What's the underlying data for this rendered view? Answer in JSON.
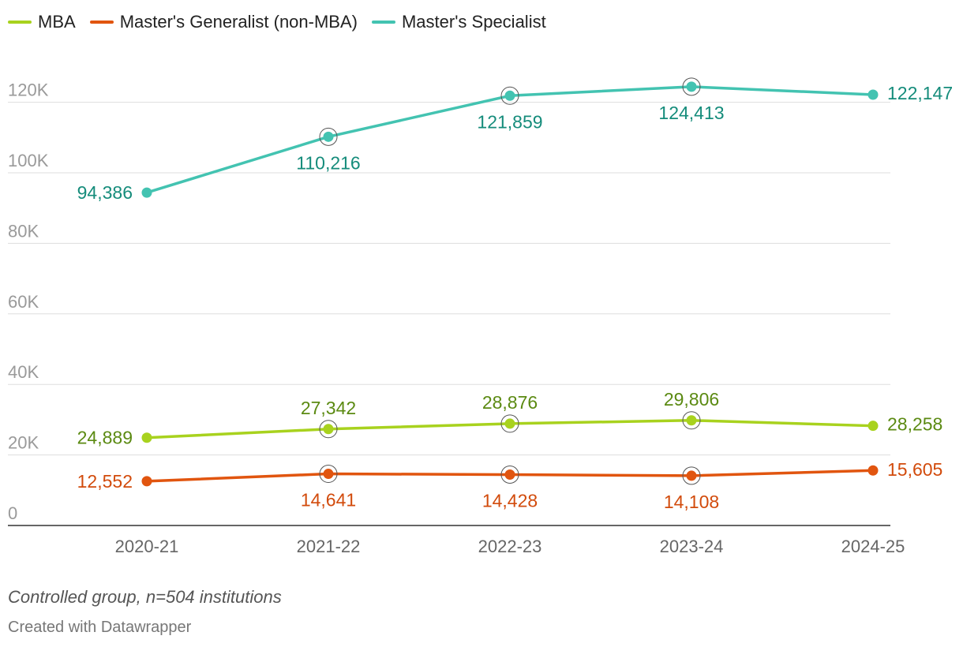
{
  "legend": [
    {
      "name": "MBA",
      "color": "#a8d21e"
    },
    {
      "name": "Master's Generalist (non-MBA)",
      "color": "#e1550f"
    },
    {
      "name": "Master's Specialist",
      "color": "#43c3b1"
    }
  ],
  "notes": "Controlled group, n=504 institutions",
  "credit": "Created with Datawrapper",
  "chart_data": {
    "type": "line",
    "title": "",
    "xlabel": "",
    "ylabel": "",
    "categories": [
      "2020-21",
      "2021-22",
      "2022-23",
      "2023-24",
      "2024-25"
    ],
    "ylim": [
      0,
      125000
    ],
    "yticks": [
      0,
      20000,
      40000,
      60000,
      80000,
      100000,
      120000
    ],
    "ytick_labels": [
      "0",
      "20K",
      "40K",
      "60K",
      "80K",
      "100K",
      "120K"
    ],
    "grid": true,
    "legend_position": "top-left",
    "series": [
      {
        "name": "MBA",
        "color": "#a8d21e",
        "label_color": "#5b8a12",
        "values": [
          24889,
          27342,
          28876,
          29806,
          28258
        ],
        "labels": [
          "24,889",
          "27,342",
          "28,876",
          "29,806",
          "28,258"
        ]
      },
      {
        "name": "Master's Generalist (non-MBA)",
        "color": "#e1550f",
        "label_color": "#d24b0c",
        "values": [
          12552,
          14641,
          14428,
          14108,
          15605
        ],
        "labels": [
          "12,552",
          "14,641",
          "14,428",
          "14,108",
          "15,605"
        ]
      },
      {
        "name": "Master's Specialist",
        "color": "#43c3b1",
        "label_color": "#158c7b",
        "values": [
          94386,
          110216,
          121859,
          124413,
          122147
        ],
        "labels": [
          "94,386",
          "110,216",
          "121,859",
          "124,413",
          "122,147"
        ]
      }
    ]
  }
}
